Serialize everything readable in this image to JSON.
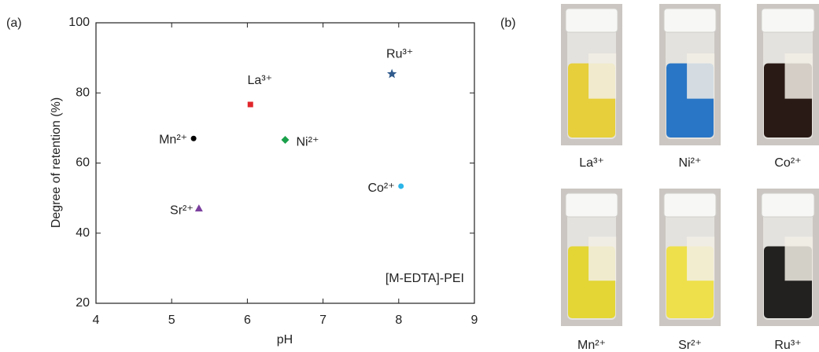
{
  "panel_a_label": "(a)",
  "chart_data": {
    "type": "scatter",
    "x_label": "pH",
    "y_label": "Degree of  retention (%)",
    "annotation": "[M-EDTA]-PEI",
    "xlim": [
      4,
      9
    ],
    "xticks": [
      4,
      5,
      6,
      7,
      8,
      9
    ],
    "ylim": [
      20,
      100
    ],
    "yticks": [
      20,
      40,
      60,
      80,
      100
    ],
    "series": [
      {
        "name": "Mn²⁺",
        "color": "#000000",
        "marker": "circle",
        "x": [
          5.29
        ],
        "values": [
          67.0
        ]
      },
      {
        "name": "La³⁺",
        "color": "#e0262b",
        "marker": "square",
        "x": [
          6.04
        ],
        "values": [
          76.7
        ]
      },
      {
        "name": "Ni²⁺",
        "color": "#1aa04a",
        "marker": "diamond",
        "x": [
          6.5
        ],
        "values": [
          66.6
        ]
      },
      {
        "name": "Ru³⁺",
        "color": "#2f5a8c",
        "marker": "star",
        "x": [
          7.91
        ],
        "values": [
          85.4
        ]
      },
      {
        "name": "Co²⁺",
        "color": "#2bb5e8",
        "marker": "circle",
        "x": [
          8.03
        ],
        "values": [
          53.4
        ]
      },
      {
        "name": "Sr²⁺",
        "color": "#7b3f9e",
        "marker": "triangle",
        "x": [
          5.36
        ],
        "values": [
          47.1
        ]
      }
    ]
  },
  "panel_b": {
    "label": "(b)",
    "photos": [
      {
        "caption": "La³⁺",
        "liquid": "#e6cf3a"
      },
      {
        "caption": "Ni²⁺",
        "liquid": "#2a76c6"
      },
      {
        "caption": "Co²⁺",
        "liquid": "#2a1a16"
      },
      {
        "caption": "Mn²⁺",
        "liquid": "#e3d635"
      },
      {
        "caption": "Sr²⁺",
        "liquid": "#eee04a"
      },
      {
        "caption": "Ru³⁺",
        "liquid": "#232120"
      }
    ]
  }
}
